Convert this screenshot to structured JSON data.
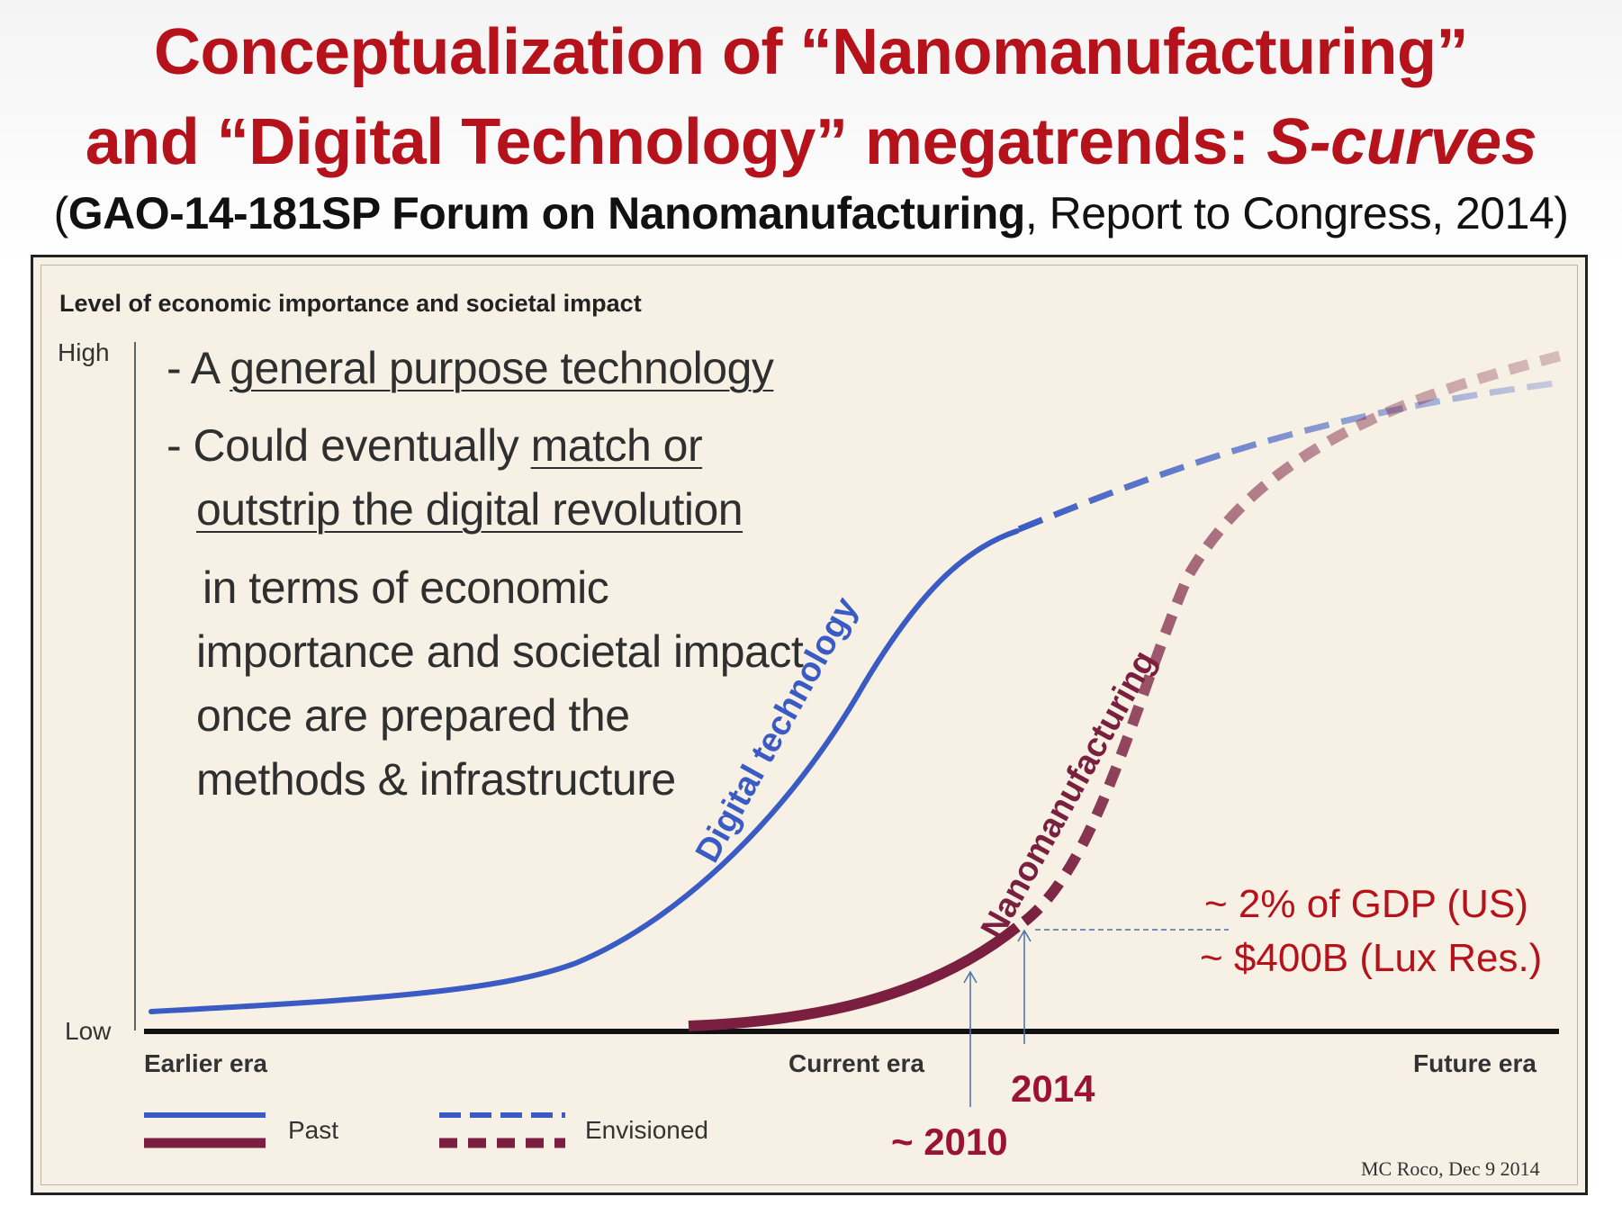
{
  "title": {
    "line1": "Conceptualization of “Nanomanufacturing”",
    "line2_prefix": "and “Digital Technology” megatrends: ",
    "line2_italic": "S-curves",
    "subtitle_bold": "GAO-14-181SP Forum on Nanomanufacturing",
    "subtitle_rest": ", Report to Congress, 2014)",
    "subtitle_open": "("
  },
  "chart": {
    "y_axis_title": "Level of economic importance and societal impact",
    "y_high": "High",
    "y_low": "Low",
    "x_labels": [
      "Earlier era",
      "Current era",
      "Future era"
    ],
    "curve_labels": {
      "digital": "Digital technology",
      "nano": "Nanomanufacturing"
    },
    "legend": {
      "past": "Past",
      "envisioned": "Envisioned"
    },
    "colors": {
      "digital": "#3b5bc4",
      "nano": "#7a1f3f",
      "accent": "#b5121b"
    }
  },
  "text": {
    "b1_prefix": "- A ",
    "b1_underlined": "general purpose technology",
    "b2_prefix": "- Could eventually ",
    "b2_underlined": "match or",
    "b3_underlined": "outstrip the digital revolution",
    "b4": "in terms of economic",
    "b5": "importance and societal impact",
    "b6": "once are prepared the",
    "b7": "methods & infrastructure"
  },
  "annotations": {
    "gdp": "~ 2% of GDP (US)",
    "lux": "~ $400B (Lux Res.)",
    "year_2014": "2014",
    "year_2010": "~ 2010",
    "credit": "MC Roco, Dec 9  2014"
  }
}
